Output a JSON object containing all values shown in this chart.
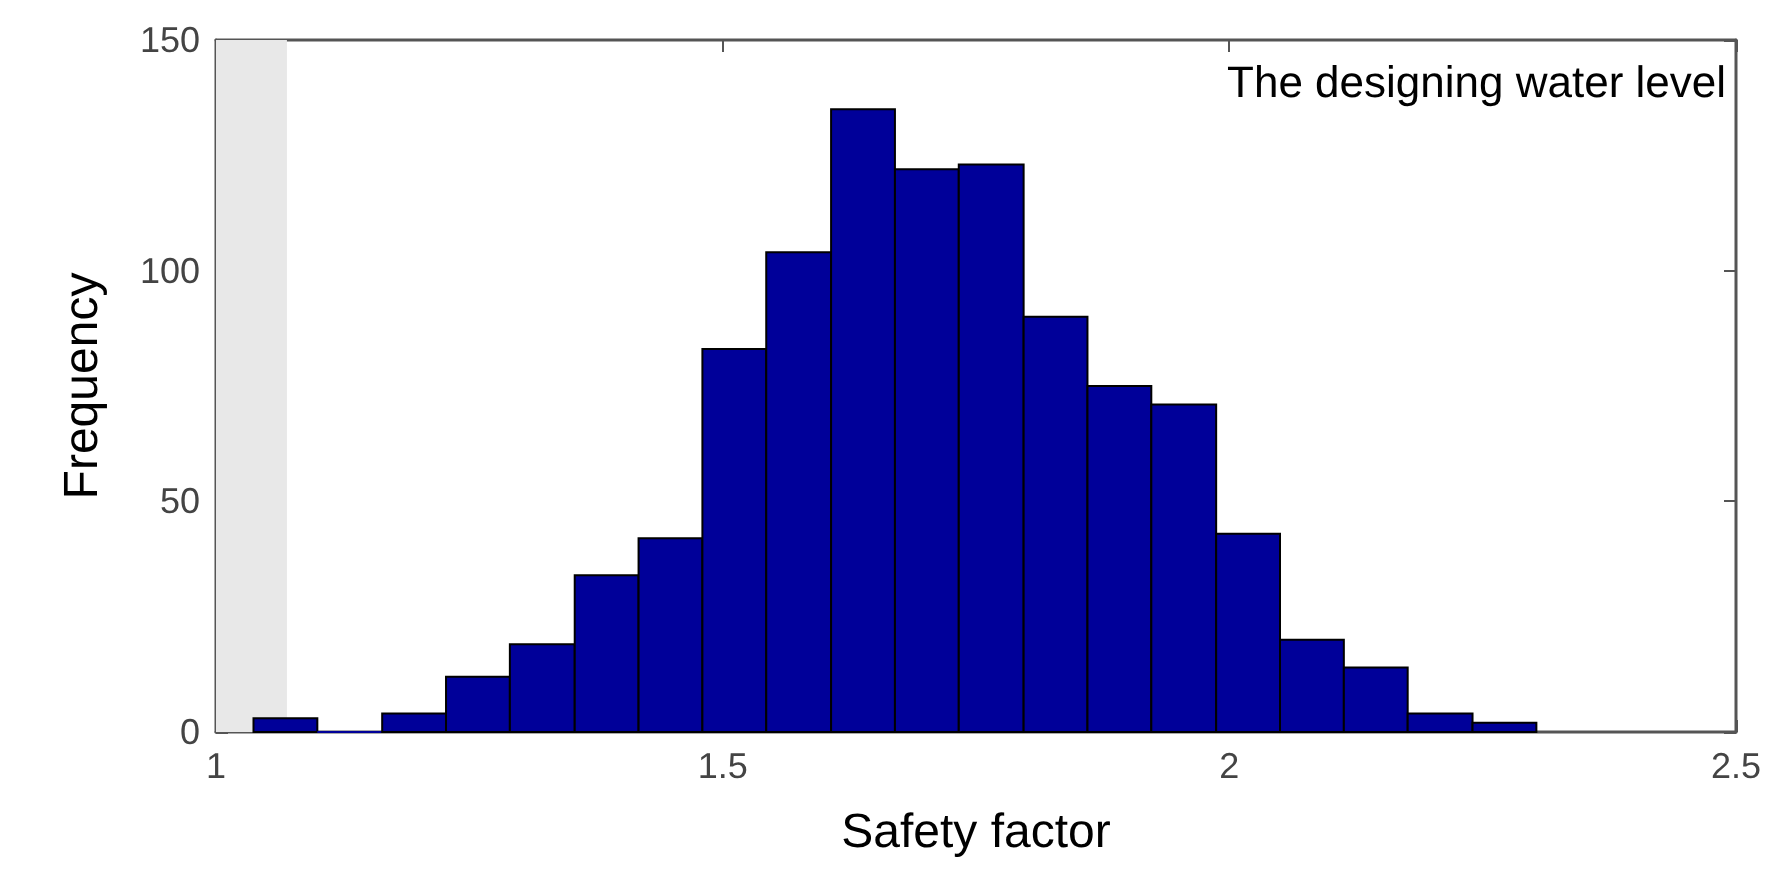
{
  "chart_data": {
    "type": "histogram",
    "xlabel": "Safety factor",
    "ylabel": "Frequency",
    "annotations": [
      "The designing water level"
    ],
    "bins": [
      1.037,
      1.1,
      1.164,
      1.227,
      1.29,
      1.354,
      1.417,
      1.48,
      1.543,
      1.607,
      1.67,
      1.733,
      1.797,
      1.86,
      1.923,
      1.987,
      2.05,
      2.113,
      2.176,
      2.24,
      2.303
    ],
    "values": [
      3,
      0,
      4,
      12,
      19,
      34,
      42,
      83,
      104,
      135,
      122,
      123,
      90,
      75,
      71,
      43,
      20,
      14,
      4,
      2
    ],
    "color": "#000099",
    "xlim": [
      1,
      2.5
    ],
    "xticks": [
      1,
      1.5,
      2,
      2.5
    ],
    "ylim": [
      0,
      150
    ],
    "yticks": [
      0,
      50,
      100,
      150
    ],
    "bands": [
      {
        "axis": "x",
        "from": 1,
        "to": 1.07,
        "color": "#e8e8e8"
      }
    ],
    "grid": false
  }
}
